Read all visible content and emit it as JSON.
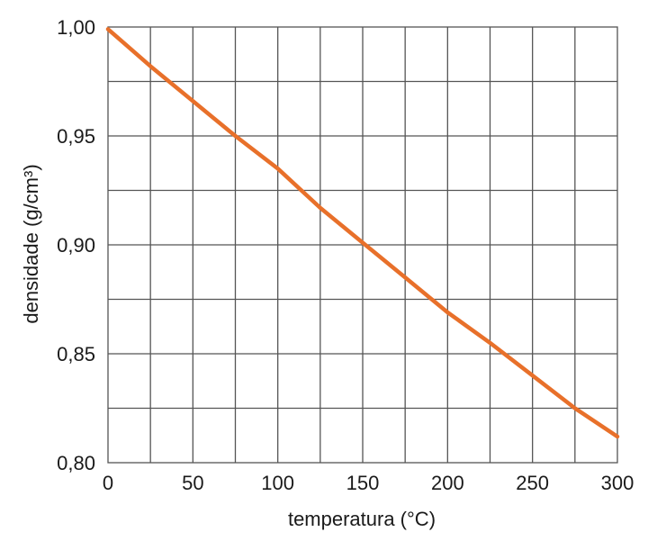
{
  "chart_data": {
    "type": "line",
    "title": "",
    "xlabel": "temperatura (°C)",
    "ylabel": "densidade (g/cm³)",
    "xlim": [
      0,
      300
    ],
    "ylim": [
      0.8,
      1.0
    ],
    "grid": true,
    "x_ticks": [
      0,
      50,
      100,
      150,
      200,
      250,
      300
    ],
    "x_tick_labels": [
      "0",
      "50",
      "100",
      "150",
      "200",
      "250",
      "300"
    ],
    "y_ticks": [
      0.8,
      0.85,
      0.9,
      0.95,
      1.0
    ],
    "y_tick_labels": [
      "0,80",
      "0,85",
      "0,90",
      "0,95",
      "1,00"
    ],
    "x_minor_grid_step": 25,
    "y_minor_grid_step": 0.025,
    "series": [
      {
        "color": "#e8702a",
        "x": [
          0,
          25,
          50,
          75,
          100,
          125,
          150,
          175,
          200,
          225,
          250,
          275,
          300
        ],
        "y": [
          0.999,
          0.982,
          0.966,
          0.95,
          0.935,
          0.917,
          0.901,
          0.885,
          0.869,
          0.855,
          0.84,
          0.825,
          0.812
        ]
      }
    ]
  }
}
